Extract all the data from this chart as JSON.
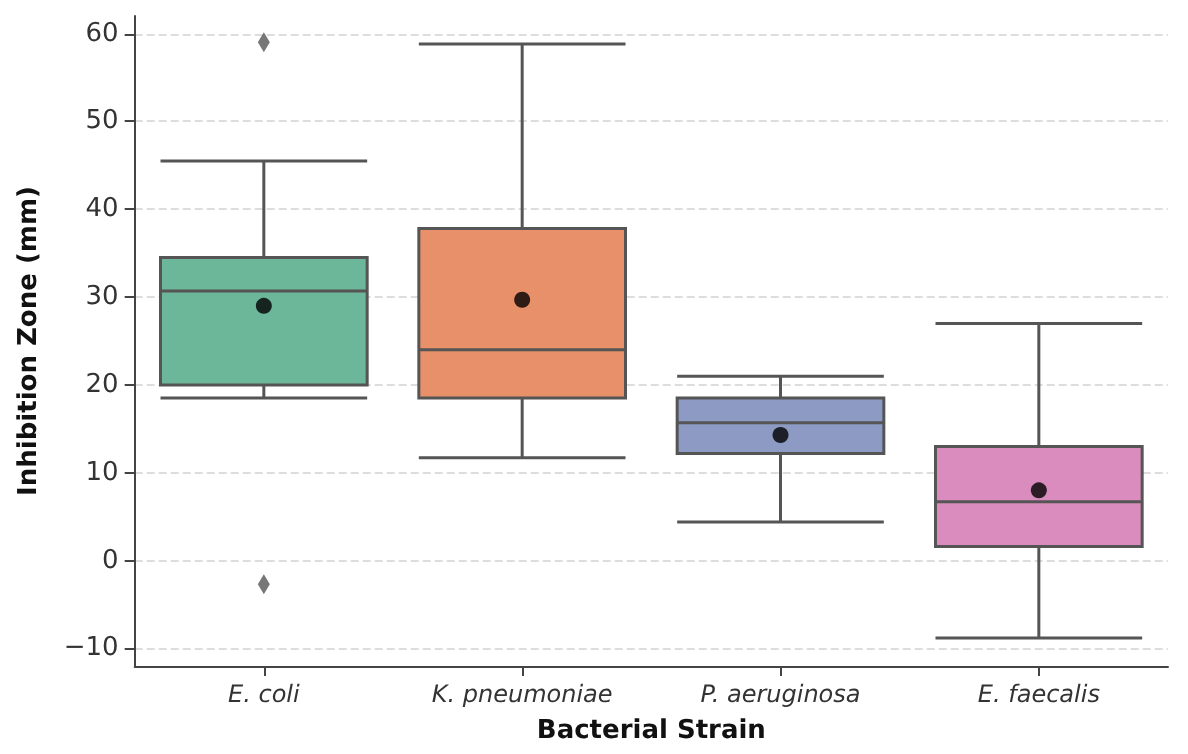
{
  "chart_data": {
    "type": "box",
    "xlabel": "Bacterial Strain",
    "ylabel": "Inhibition Zone (mm)",
    "categories": [
      "E. coli",
      "K. pneumoniae",
      "P. aeruginosa",
      "E. faecalis"
    ],
    "colors": [
      "#6cb69a",
      "#e8906a",
      "#8d9bc4",
      "#d98cbd"
    ],
    "boxes": [
      {
        "low": 18.5,
        "q1": 20,
        "median": 30.7,
        "q3": 34.5,
        "high": 45.5,
        "mean": 29,
        "outliers": [
          59,
          -2.7
        ]
      },
      {
        "low": 11.7,
        "q1": 18.5,
        "median": 24,
        "q3": 37.8,
        "high": 58.8,
        "mean": 29.7
      },
      {
        "low": 4.4,
        "q1": 12.2,
        "median": 15.7,
        "q3": 18.5,
        "high": 21,
        "mean": 14.3
      },
      {
        "low": -8.8,
        "q1": 1.6,
        "median": 6.7,
        "q3": 13,
        "high": 27,
        "mean": 8
      }
    ],
    "ylim": [
      -12,
      62
    ],
    "yticks": [
      -10,
      0,
      10,
      20,
      30,
      40,
      50,
      60
    ],
    "grid": "y"
  }
}
